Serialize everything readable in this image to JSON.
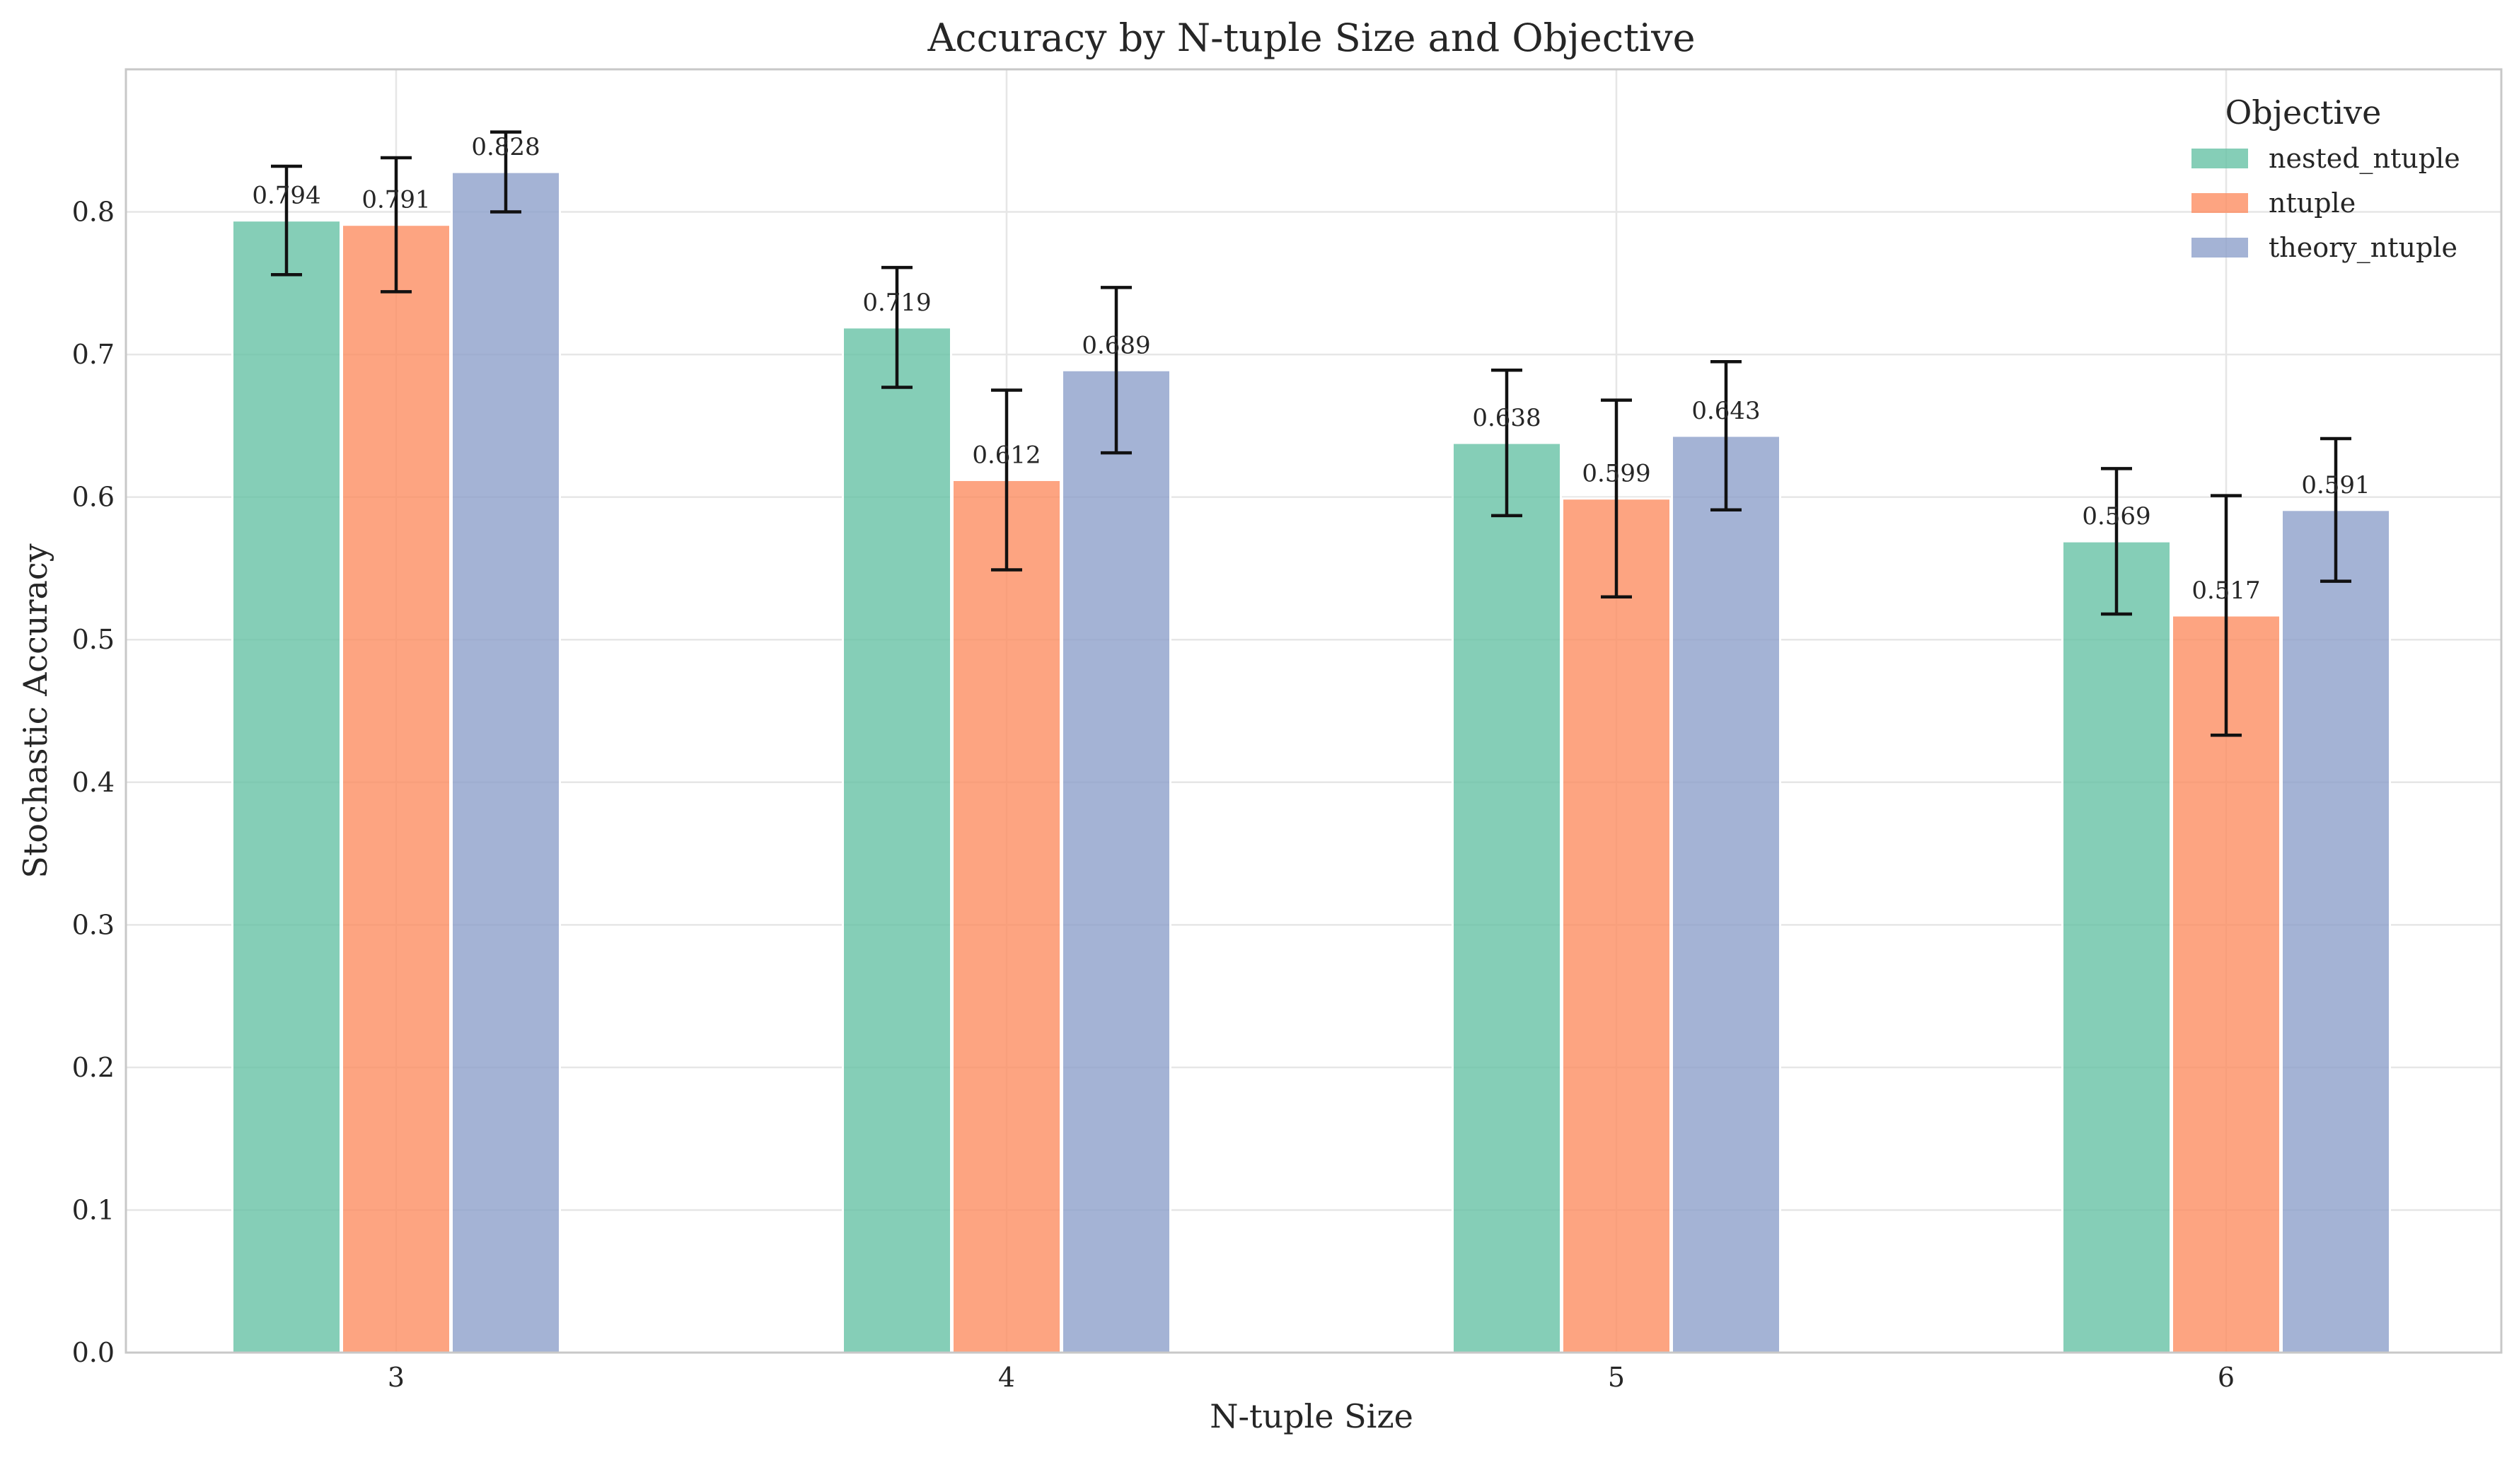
{
  "chart_data": {
    "type": "bar",
    "title": "Accuracy by N-tuple Size and Objective",
    "xlabel": "N-tuple Size",
    "ylabel": "Stochastic Accuracy",
    "categories": [
      "3",
      "4",
      "5",
      "6"
    ],
    "ylim": [
      0,
      0.9
    ],
    "yticks": [
      "0.0",
      "0.1",
      "0.2",
      "0.3",
      "0.4",
      "0.5",
      "0.6",
      "0.7",
      "0.8"
    ],
    "grid": true,
    "legend": {
      "title": "Objective",
      "placement": "top-right"
    },
    "series": [
      {
        "name": "nested_ntuple",
        "color": "#66c2a5",
        "values": [
          0.794,
          0.719,
          0.638,
          0.569
        ],
        "labels": [
          "0.794",
          "0.719",
          "0.638",
          "0.569"
        ],
        "errors": [
          0.038,
          0.042,
          0.051,
          0.051
        ]
      },
      {
        "name": "ntuple",
        "color": "#fc8d62",
        "values": [
          0.791,
          0.612,
          0.599,
          0.517
        ],
        "labels": [
          "0.791",
          "0.612",
          "0.599",
          "0.517"
        ],
        "errors": [
          0.047,
          0.063,
          0.069,
          0.084
        ]
      },
      {
        "name": "theory_ntuple",
        "color": "#8da0cb",
        "values": [
          0.828,
          0.689,
          0.643,
          0.591
        ],
        "labels": [
          "0.828",
          "0.689",
          "0.643",
          "0.591"
        ],
        "errors": [
          0.028,
          0.058,
          0.052,
          0.05
        ]
      }
    ]
  }
}
